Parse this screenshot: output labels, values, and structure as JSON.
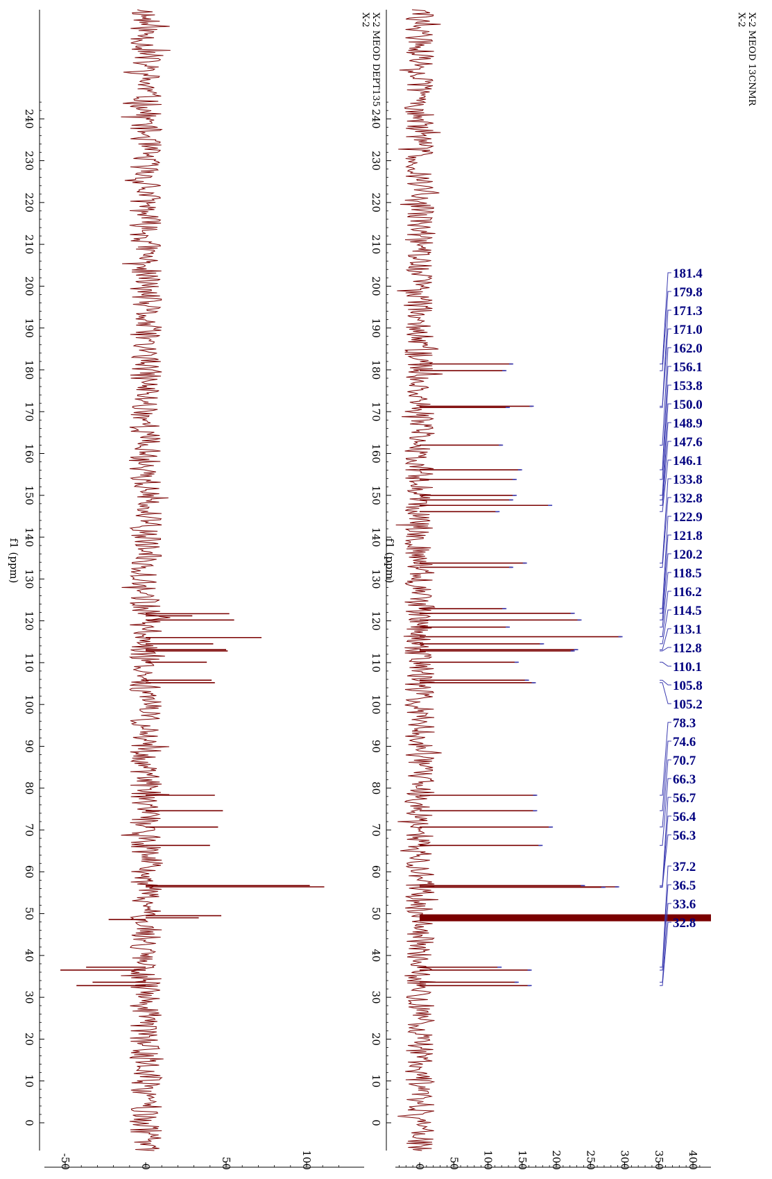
{
  "colors": {
    "spectrum": "#7a0000",
    "highlight": "#3a3ab0",
    "peak_label": "#000080",
    "axis": "#000000"
  },
  "chart_data": [
    {
      "type": "line",
      "title_lines": [
        "X-2",
        "X-2 MEOD DEPT135"
      ],
      "xlabel": "f1 (ppm)",
      "xlim": [
        245,
        -3
      ],
      "ylim": [
        -56,
        127
      ],
      "x_ticks": [
        240,
        230,
        220,
        210,
        200,
        190,
        180,
        170,
        160,
        150,
        140,
        130,
        120,
        110,
        100,
        90,
        80,
        70,
        60,
        50,
        40,
        30,
        20,
        10,
        0
      ],
      "y_ticks": [
        -50,
        0,
        50,
        100
      ],
      "noise_amplitude": 10,
      "peaks": [
        {
          "x": 121.7,
          "y": 52
        },
        {
          "x": 121.2,
          "y": 29
        },
        {
          "x": 120.2,
          "y": 55
        },
        {
          "x": 116.0,
          "y": 72
        },
        {
          "x": 114.5,
          "y": 42
        },
        {
          "x": 113.1,
          "y": 50
        },
        {
          "x": 112.8,
          "y": 51
        },
        {
          "x": 110.1,
          "y": 38
        },
        {
          "x": 105.8,
          "y": 41
        },
        {
          "x": 105.2,
          "y": 43
        },
        {
          "x": 78.3,
          "y": 43
        },
        {
          "x": 74.6,
          "y": 48
        },
        {
          "x": 70.7,
          "y": 45
        },
        {
          "x": 66.3,
          "y": 40
        },
        {
          "x": 56.7,
          "y": 102
        },
        {
          "x": 56.4,
          "y": 111
        },
        {
          "x": 49.5,
          "y": 47
        },
        {
          "x": 49.0,
          "y": 33
        },
        {
          "x": 37.2,
          "y": -37
        },
        {
          "x": 36.5,
          "y": -53
        },
        {
          "x": 33.6,
          "y": -33
        },
        {
          "x": 32.8,
          "y": -43
        },
        {
          "x": 48.6,
          "y": -23
        }
      ]
    },
    {
      "type": "line",
      "title_lines": [
        "X-2",
        "X-2 MEOD 13CNMR"
      ],
      "xlabel": "f1 (ppm)",
      "xlim": [
        245,
        -3
      ],
      "ylim": [
        -37,
        415
      ],
      "x_ticks": [
        240,
        230,
        220,
        210,
        200,
        190,
        180,
        170,
        160,
        150,
        140,
        130,
        120,
        110,
        100,
        90,
        80,
        70,
        60,
        50,
        40,
        30,
        20,
        10,
        0
      ],
      "y_ticks": [
        0,
        50,
        100,
        150,
        200,
        250,
        300,
        350,
        400
      ],
      "noise_amplitude": 22,
      "peaks": [
        {
          "x": 181.4,
          "y": 135
        },
        {
          "x": 179.8,
          "y": 125
        },
        {
          "x": 171.3,
          "y": 165
        },
        {
          "x": 171.0,
          "y": 130
        },
        {
          "x": 162.0,
          "y": 120
        },
        {
          "x": 156.1,
          "y": 148
        },
        {
          "x": 153.8,
          "y": 140
        },
        {
          "x": 150.0,
          "y": 140
        },
        {
          "x": 148.9,
          "y": 135
        },
        {
          "x": 147.6,
          "y": 192
        },
        {
          "x": 146.1,
          "y": 115
        },
        {
          "x": 133.8,
          "y": 155
        },
        {
          "x": 132.8,
          "y": 135
        },
        {
          "x": 122.9,
          "y": 125
        },
        {
          "x": 121.8,
          "y": 225
        },
        {
          "x": 120.2,
          "y": 235
        },
        {
          "x": 118.5,
          "y": 130
        },
        {
          "x": 116.2,
          "y": 295
        },
        {
          "x": 114.5,
          "y": 180
        },
        {
          "x": 113.1,
          "y": 230
        },
        {
          "x": 112.8,
          "y": 225
        },
        {
          "x": 110.1,
          "y": 143
        },
        {
          "x": 105.8,
          "y": 158
        },
        {
          "x": 105.2,
          "y": 168
        },
        {
          "x": 78.3,
          "y": 170
        },
        {
          "x": 74.6,
          "y": 170
        },
        {
          "x": 70.7,
          "y": 193
        },
        {
          "x": 66.3,
          "y": 178
        },
        {
          "x": 56.7,
          "y": 240
        },
        {
          "x": 56.4,
          "y": 290
        },
        {
          "x": 56.3,
          "y": 270
        },
        {
          "x": 37.2,
          "y": 118
        },
        {
          "x": 36.5,
          "y": 162
        },
        {
          "x": 33.6,
          "y": 143
        },
        {
          "x": 32.8,
          "y": 162
        }
      ],
      "solvent_peak": {
        "x": 49.0,
        "y": 415
      },
      "peak_labels": [
        "181.4",
        "179.8",
        "171.3",
        "171.0",
        "162.0",
        "156.1",
        "153.8",
        "150.0",
        "148.9",
        "147.6",
        "146.1",
        "133.8",
        "132.8",
        "122.9",
        "121.8",
        "120.2",
        "118.5",
        "116.2",
        "114.5",
        "113.1",
        "112.8",
        "110.1",
        "105.8",
        "105.2",
        "78.3",
        "74.6",
        "70.7",
        "66.3",
        "56.7",
        "56.4",
        "56.3",
        "37.2",
        "36.5",
        "33.6",
        "32.8"
      ]
    }
  ]
}
